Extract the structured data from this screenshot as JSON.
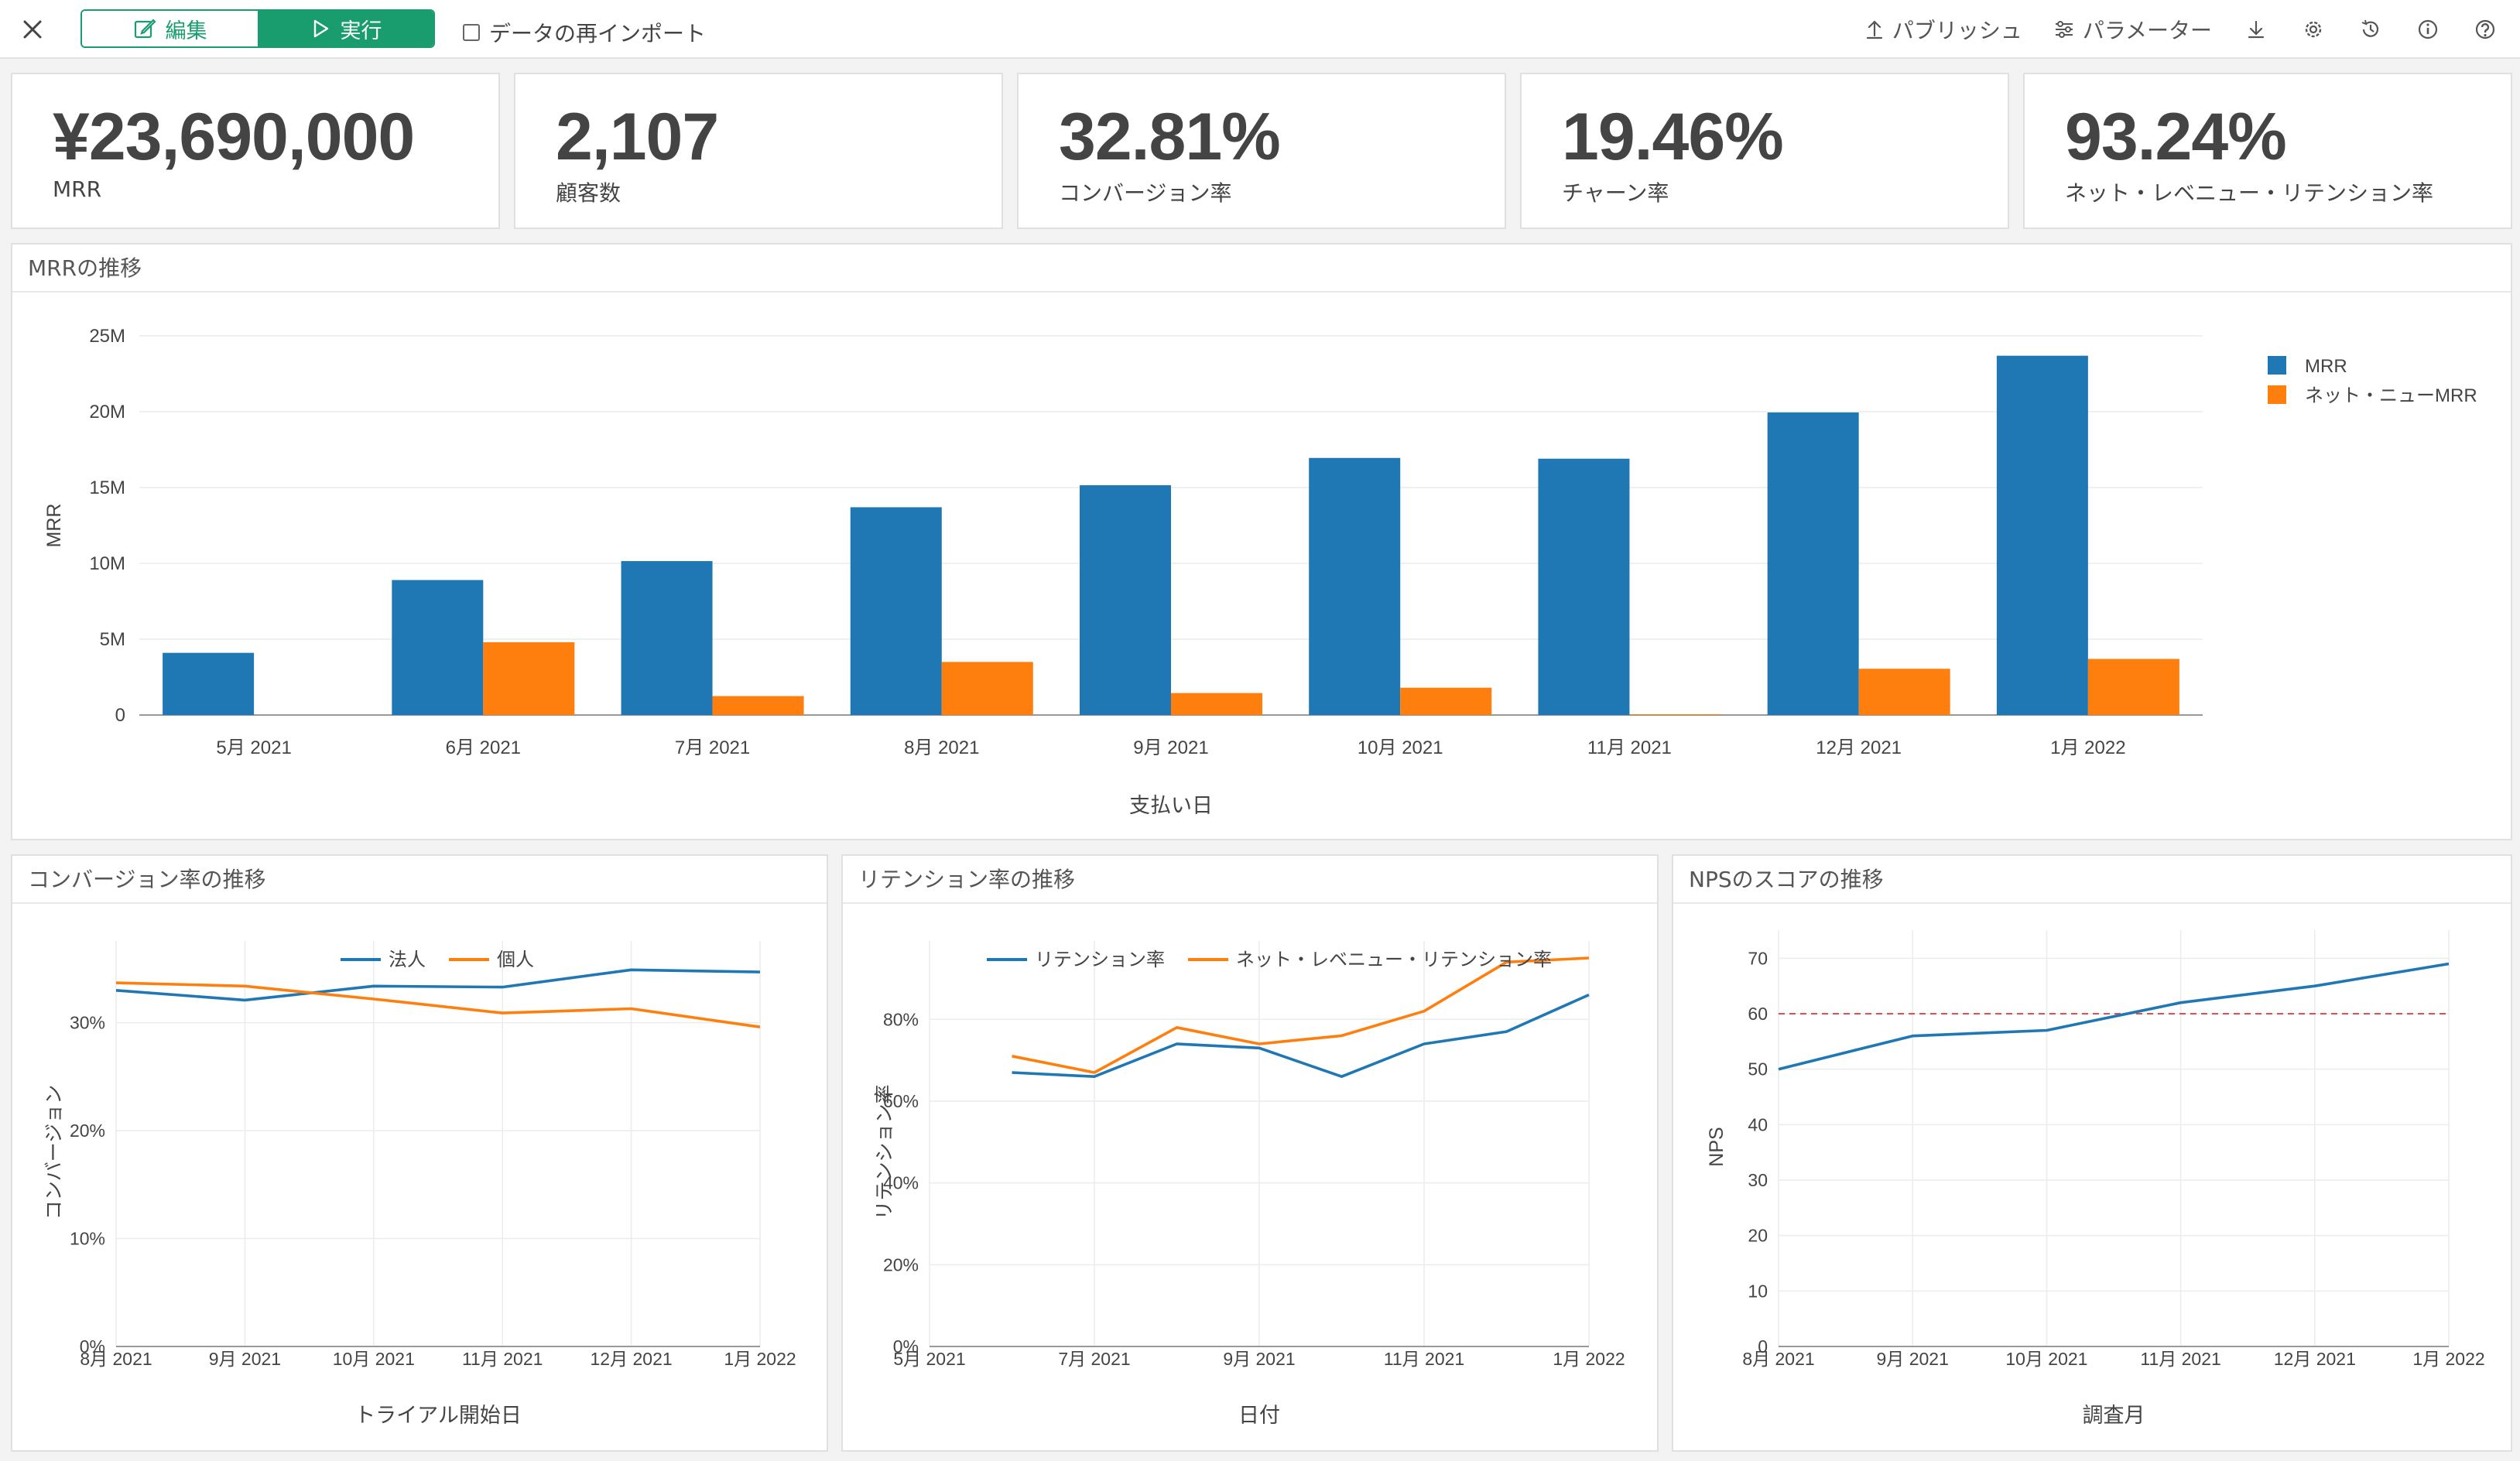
{
  "toolbar": {
    "edit_label": "編集",
    "run_label": "実行",
    "reimport_label": "データの再インポート",
    "reimport_checked": false,
    "publish_label": "パブリッシュ",
    "params_label": "パラメーター",
    "icons": [
      "close-icon",
      "edit-icon",
      "play-icon",
      "upload-icon",
      "sliders-icon",
      "download-icon",
      "gear-icon",
      "history-icon",
      "info-icon",
      "help-icon"
    ]
  },
  "kpis": [
    {
      "value": "¥23,690,000",
      "label": "MRR"
    },
    {
      "value": "2,107",
      "label": "顧客数"
    },
    {
      "value": "32.81%",
      "label": "コンバージョン率"
    },
    {
      "value": "19.46%",
      "label": "チャーン率"
    },
    {
      "value": "93.24%",
      "label": "ネット・レベニュー・リテンション率"
    }
  ],
  "panels": {
    "mrr": {
      "title": "MRRの推移"
    },
    "conversion": {
      "title": "コンバージョン率の推移"
    },
    "retention": {
      "title": "リテンション率の推移"
    },
    "nps": {
      "title": "NPSのスコアの推移"
    }
  },
  "chart_data": [
    {
      "id": "mrr",
      "type": "bar",
      "xlabel": "支払い日",
      "ylabel": "MRR",
      "ylim": [
        0,
        25000000
      ],
      "yticks": [
        0,
        5000000,
        10000000,
        15000000,
        20000000,
        25000000
      ],
      "ytick_labels": [
        "0",
        "5M",
        "10M",
        "15M",
        "20M",
        "25M"
      ],
      "categories": [
        "5月 2021",
        "6月 2021",
        "7月 2021",
        "8月 2021",
        "9月 2021",
        "10月 2021",
        "11月 2021",
        "12月 2021",
        "1月 2022"
      ],
      "series": [
        {
          "name": "MRR",
          "color": "#1f77b4",
          "values": [
            4100000,
            8900000,
            10150000,
            13700000,
            15150000,
            16950000,
            16900000,
            19950000,
            23690000
          ]
        },
        {
          "name": "ネット・ニューMRR",
          "color": "#ff7f0e",
          "values": [
            0,
            4800000,
            1250000,
            3500000,
            1450000,
            1800000,
            50000,
            3050000,
            3700000
          ]
        }
      ],
      "legend": "top-right",
      "grid": true
    },
    {
      "id": "conversion",
      "type": "line",
      "xlabel": "トライアル開始日",
      "ylabel": "コンバージョン",
      "x_labels": [
        "8月 2021",
        "9月 2021",
        "10月 2021",
        "11月 2021",
        "12月 2021",
        "1月 2022"
      ],
      "ylim": [
        0,
        0.36
      ],
      "yticks": [
        0,
        0.1,
        0.2,
        0.3
      ],
      "ytick_labels": [
        "0%",
        "10%",
        "20%",
        "30%"
      ],
      "series": [
        {
          "name": "法人",
          "color": "#1f77b4",
          "values": [
            0.33,
            0.321,
            0.334,
            0.333,
            0.349,
            0.347
          ]
        },
        {
          "name": "個人",
          "color": "#ff7f0e",
          "values": [
            0.337,
            0.334,
            0.322,
            0.309,
            0.313,
            0.296
          ]
        }
      ],
      "legend": "top-center",
      "grid": true
    },
    {
      "id": "retention",
      "type": "line",
      "xlabel": "日付",
      "ylabel": "リテンション率",
      "x_labels": [
        "5月 2021",
        "7月 2021",
        "9月 2021",
        "11月 2021",
        "1月 2022"
      ],
      "x_months": [
        "6月 2021",
        "7月 2021",
        "8月 2021",
        "9月 2021",
        "10月 2021",
        "11月 2021",
        "12月 2021",
        "1月 2022"
      ],
      "ylim": [
        0,
        0.95
      ],
      "yticks": [
        0,
        0.2,
        0.4,
        0.6,
        0.8
      ],
      "ytick_labels": [
        "0%",
        "20%",
        "40%",
        "60%",
        "80%"
      ],
      "series": [
        {
          "name": "リテンション率",
          "color": "#1f77b4",
          "values": [
            0.67,
            0.66,
            0.74,
            0.73,
            0.66,
            0.74,
            0.77,
            0.86
          ]
        },
        {
          "name": "ネット・レベニュー・リテンション率",
          "color": "#ff7f0e",
          "values": [
            0.71,
            0.67,
            0.78,
            0.74,
            0.76,
            0.82,
            0.94,
            0.95
          ]
        }
      ],
      "legend": "top-center",
      "grid": true
    },
    {
      "id": "nps",
      "type": "line",
      "xlabel": "調査月",
      "ylabel": "NPS",
      "x_labels": [
        "8月 2021",
        "9月 2021",
        "10月 2021",
        "11月 2021",
        "12月 2021",
        "1月 2022"
      ],
      "ylim": [
        0,
        72
      ],
      "yticks": [
        0,
        10,
        20,
        30,
        40,
        50,
        60,
        70
      ],
      "ytick_labels": [
        "0",
        "10",
        "20",
        "30",
        "40",
        "50",
        "60",
        "70"
      ],
      "series": [
        {
          "color": "#1f77b4",
          "values": [
            50,
            56,
            57,
            62,
            65,
            69
          ]
        }
      ],
      "reference_line": {
        "value": 60,
        "color": "#e05050",
        "style": "dashed"
      },
      "grid": true
    }
  ]
}
